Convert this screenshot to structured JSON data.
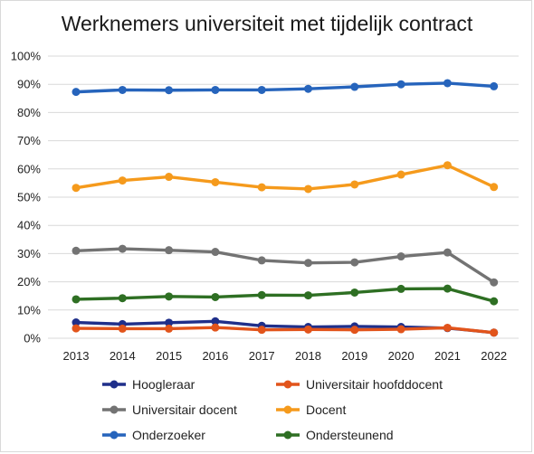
{
  "chart_data": {
    "type": "line",
    "title": "Werknemers universiteit met tijdelijk contract",
    "xlabel": "",
    "ylabel": "",
    "x": [
      "2013",
      "2014",
      "2015",
      "2016",
      "2017",
      "2018",
      "2019",
      "2020",
      "2021",
      "2022"
    ],
    "ylim": [
      0,
      100
    ],
    "y_ticks": [
      "0%",
      "10%",
      "20%",
      "30%",
      "40%",
      "50%",
      "60%",
      "70%",
      "80%",
      "90%",
      "100%"
    ],
    "y_tick_values": [
      0,
      10,
      20,
      30,
      40,
      50,
      60,
      70,
      80,
      90,
      100
    ],
    "grid": true,
    "legend_position": "bottom",
    "series": [
      {
        "name": "Hoogleraar",
        "color": "#1f2f8a",
        "values": [
          5.6,
          5.0,
          5.5,
          6.0,
          4.4,
          4.0,
          4.2,
          4.0,
          3.6,
          2.0
        ]
      },
      {
        "name": "Universitair hoofddocent",
        "color": "#e2541b",
        "values": [
          3.5,
          3.4,
          3.4,
          3.8,
          3.0,
          3.1,
          3.0,
          3.2,
          3.7,
          2.0
        ]
      },
      {
        "name": "Universitair docent",
        "color": "#737373",
        "values": [
          31.0,
          31.7,
          31.2,
          30.6,
          27.6,
          26.7,
          26.9,
          29.0,
          30.4,
          19.8
        ]
      },
      {
        "name": "Docent",
        "color": "#f59a1c",
        "values": [
          53.3,
          55.9,
          57.2,
          55.3,
          53.5,
          52.9,
          54.5,
          58.0,
          61.3,
          53.6
        ]
      },
      {
        "name": "Onderzoeker",
        "color": "#2664bc",
        "values": [
          87.3,
          88.0,
          87.9,
          88.0,
          88.0,
          88.4,
          89.1,
          90.0,
          90.4,
          89.3
        ]
      },
      {
        "name": "Ondersteunend",
        "color": "#2e6f23",
        "values": [
          13.8,
          14.2,
          14.8,
          14.6,
          15.3,
          15.2,
          16.2,
          17.5,
          17.6,
          13.1
        ]
      }
    ]
  }
}
